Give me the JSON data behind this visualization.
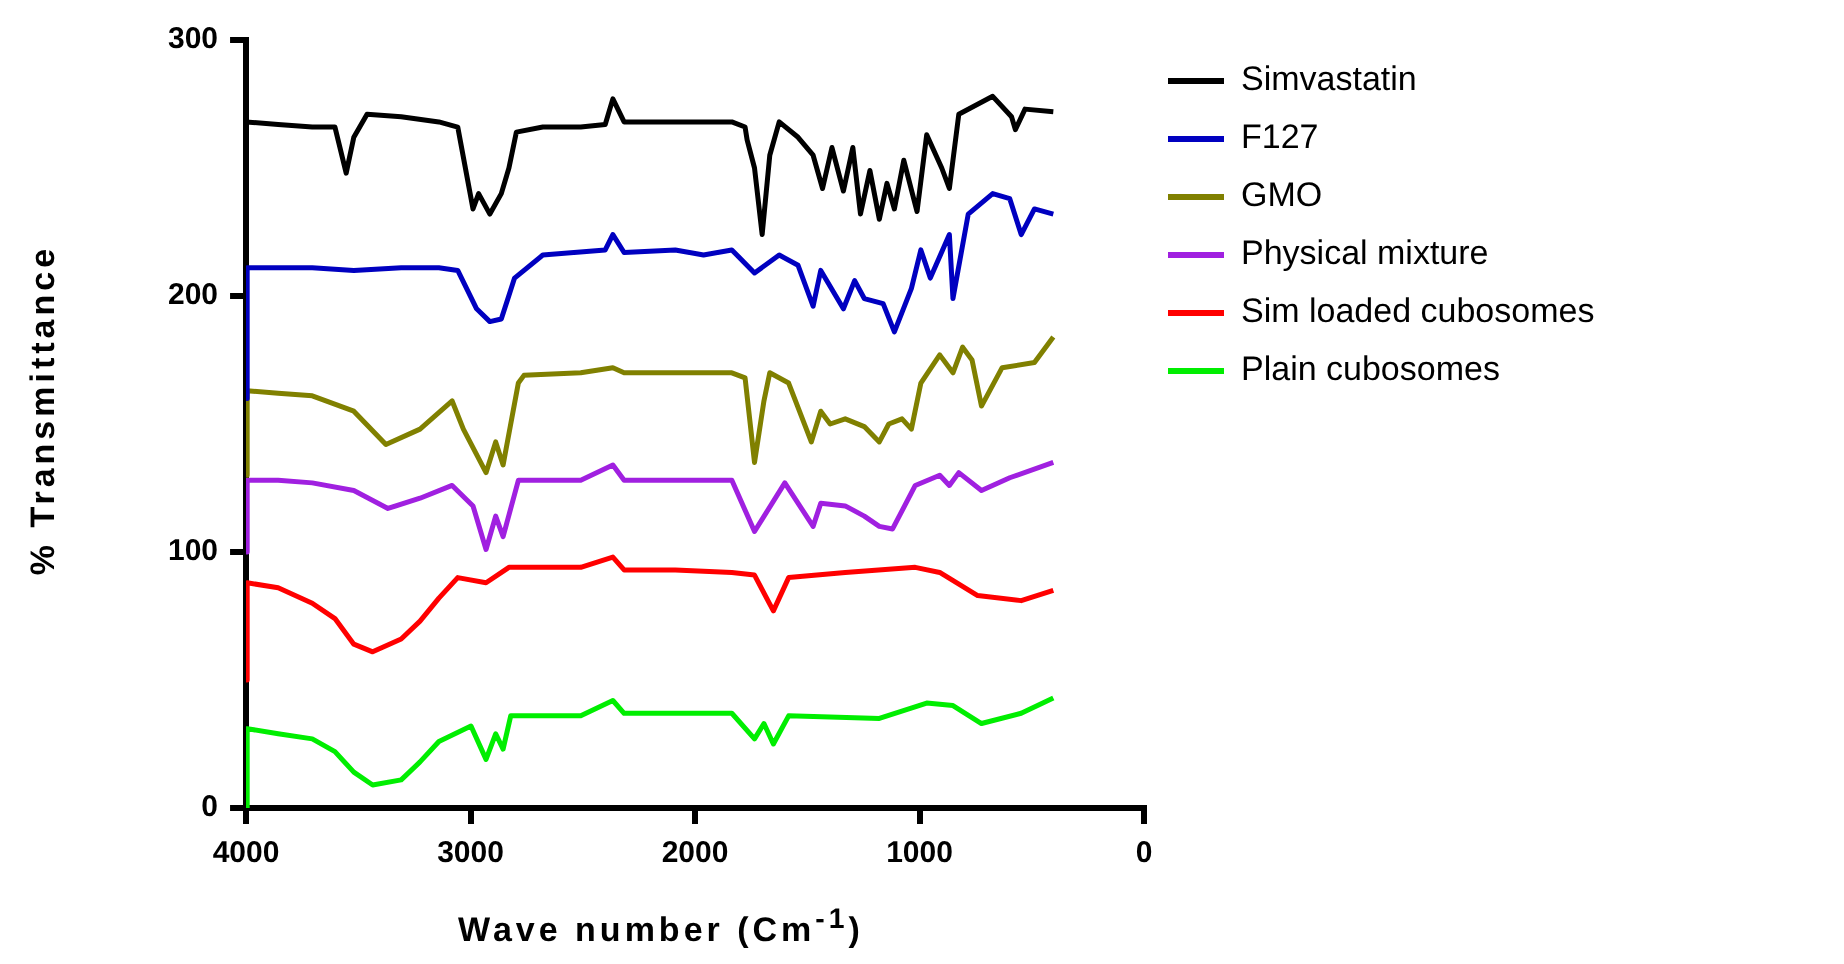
{
  "chart_data": {
    "type": "line",
    "xlabel": "Wave number (Cm$^{-1}$)",
    "ylabel": "% Transmittance",
    "xlim": [
      4000,
      0
    ],
    "xticks": [
      4000,
      3000,
      2000,
      1000,
      0
    ],
    "ylim": [
      0,
      300
    ],
    "yticks": [
      0,
      100,
      200,
      300
    ],
    "grid": false,
    "legend": "right",
    "series": [
      {
        "name": "Simvastatin",
        "color": "#000000",
        "x": [
          4000,
          3857,
          3705,
          3604,
          3554,
          3520,
          3461,
          3309,
          3141,
          3057,
          2989,
          2964,
          2914,
          2863,
          2829,
          2796,
          2678,
          2509,
          2400,
          2366,
          2316,
          2088,
          1836,
          1777,
          1768,
          1735,
          1701,
          1667,
          1625,
          1541,
          1474,
          1432,
          1390,
          1339,
          1297,
          1263,
          1221,
          1179,
          1145,
          1112,
          1070,
          1011,
          968,
          901,
          867,
          825,
          674,
          590,
          573,
          530,
          404
        ],
        "values": [
          268,
          267,
          266,
          266,
          248,
          262,
          271,
          270,
          268,
          266,
          234,
          240,
          232,
          240,
          250,
          264,
          266,
          266,
          267,
          277,
          268,
          268,
          268,
          266,
          261,
          250,
          224,
          255,
          268,
          262,
          255,
          242,
          258,
          241,
          258,
          232,
          249,
          230,
          244,
          234,
          253,
          233,
          263,
          250,
          242,
          271,
          278,
          270,
          265,
          273,
          272
        ]
      },
      {
        "name": "F127",
        "color": "#0000c0",
        "x": [
          4000,
          3995,
          3857,
          3705,
          3520,
          3309,
          3141,
          3057,
          2973,
          2914,
          2863,
          2804,
          2678,
          2400,
          2366,
          2316,
          2088,
          1962,
          1836,
          1735,
          1625,
          1541,
          1474,
          1440,
          1339,
          1289,
          1246,
          1162,
          1112,
          1036,
          994,
          952,
          867,
          851,
          783,
          674,
          598,
          547,
          488,
          404
        ],
        "values": [
          160,
          211,
          211,
          211,
          210,
          211,
          211,
          210,
          195,
          190,
          191,
          207,
          216,
          218,
          224,
          217,
          218,
          216,
          218,
          209,
          216,
          212,
          196,
          210,
          195,
          206,
          199,
          197,
          186,
          203,
          218,
          207,
          224,
          199,
          232,
          240,
          238,
          224,
          234,
          232
        ]
      },
      {
        "name": "GMO",
        "color": "#808000",
        "x": [
          4000,
          3995,
          3857,
          3705,
          3520,
          3377,
          3225,
          3082,
          3032,
          2931,
          2888,
          2855,
          2787,
          2762,
          2509,
          2366,
          2316,
          2088,
          1836,
          1777,
          1735,
          1693,
          1667,
          1583,
          1482,
          1440,
          1398,
          1331,
          1246,
          1179,
          1137,
          1078,
          1036,
          994,
          910,
          851,
          808,
          766,
          724,
          632,
          488,
          404
        ],
        "values": [
          130,
          163,
          162,
          161,
          155,
          142,
          148,
          159,
          148,
          131,
          143,
          134,
          166,
          169,
          170,
          172,
          170,
          170,
          170,
          168,
          135,
          159,
          170,
          166,
          143,
          155,
          150,
          152,
          149,
          143,
          150,
          152,
          148,
          166,
          177,
          170,
          180,
          175,
          157,
          172,
          174,
          184
        ]
      },
      {
        "name": "Physical mixture",
        "color": "#a020e0",
        "x": [
          4000,
          3995,
          3857,
          3705,
          3520,
          3368,
          3225,
          3082,
          2989,
          2931,
          2888,
          2855,
          2787,
          2509,
          2366,
          2316,
          2088,
          1836,
          1735,
          1600,
          1474,
          1440,
          1331,
          1246,
          1179,
          1120,
          1019,
          910,
          867,
          825,
          724,
          598,
          404
        ],
        "values": [
          100,
          128,
          128,
          127,
          124,
          117,
          121,
          126,
          118,
          101,
          114,
          106,
          128,
          128,
          134,
          128,
          128,
          128,
          108,
          127,
          110,
          119,
          118,
          114,
          110,
          109,
          126,
          130,
          126,
          131,
          124,
          129,
          135
        ]
      },
      {
        "name": "Sim loaded cubosomes",
        "color": "#ff0000",
        "x": [
          4000,
          3995,
          3857,
          3705,
          3604,
          3520,
          3436,
          3309,
          3225,
          3141,
          3057,
          2931,
          2829,
          2509,
          2366,
          2316,
          2088,
          1836,
          1735,
          1651,
          1583,
          1331,
          1019,
          910,
          741,
          547,
          404
        ],
        "values": [
          50,
          88,
          86,
          80,
          74,
          64,
          61,
          66,
          73,
          82,
          90,
          88,
          94,
          94,
          98,
          93,
          93,
          92,
          91,
          77,
          90,
          92,
          94,
          92,
          83,
          81,
          85
        ]
      },
      {
        "name": "Plain cubosomes",
        "color": "#00ee00",
        "x": [
          4000,
          3995,
          3857,
          3705,
          3604,
          3520,
          3436,
          3309,
          3225,
          3141,
          2998,
          2931,
          2888,
          2855,
          2821,
          2509,
          2366,
          2316,
          2088,
          1836,
          1735,
          1693,
          1651,
          1583,
          1179,
          968,
          851,
          724,
          547,
          404
        ],
        "values": [
          0,
          31,
          29,
          27,
          22,
          14,
          9,
          11,
          18,
          26,
          32,
          19,
          29,
          23,
          36,
          36,
          42,
          37,
          37,
          37,
          27,
          33,
          25,
          36,
          35,
          41,
          40,
          33,
          37,
          43
        ]
      }
    ]
  }
}
